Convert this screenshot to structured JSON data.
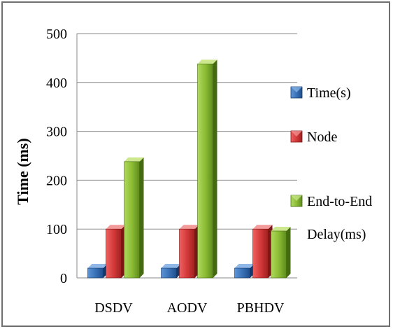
{
  "chart_data": {
    "type": "bar",
    "title": "",
    "xlabel": "",
    "ylabel": "Time (ms)",
    "ylim": [
      0,
      500
    ],
    "yticks": [
      "0",
      "100",
      "200",
      "300",
      "400",
      "500"
    ],
    "grid": true,
    "legend_position": "right",
    "categories": [
      "DSDV",
      "AODV",
      "PBHDV"
    ],
    "series": [
      {
        "name": "Time(s)",
        "values": [
          20,
          20,
          20
        ],
        "color": "#3a72b8"
      },
      {
        "name": "Node",
        "values": [
          100,
          100,
          100
        ],
        "color": "#d43a3a"
      },
      {
        "name": "End-to-End Delay(ms)",
        "name_lines": [
          "End-to-End",
          "Delay(ms)"
        ],
        "values": [
          238,
          438,
          96
        ],
        "color": "#8cbd35"
      }
    ]
  }
}
